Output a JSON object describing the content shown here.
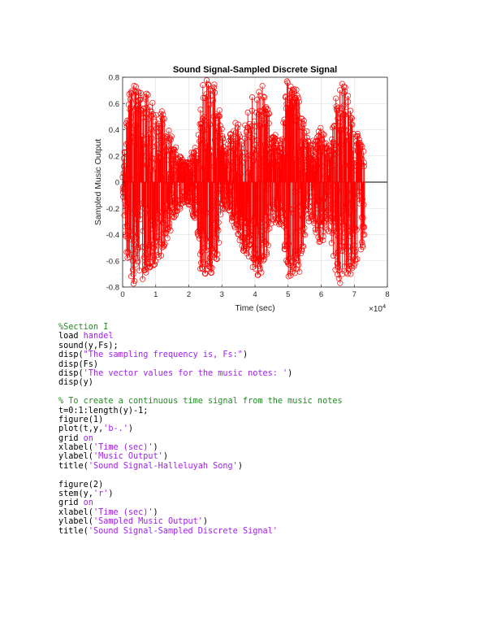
{
  "chart_data": {
    "type": "stem",
    "title": "Sound Signal-Sampled Discrete Signal",
    "xlabel": "Time (sec)",
    "ylabel": "Sampled Music Output",
    "xlim": [
      0,
      80000
    ],
    "ylim": [
      -0.8,
      0.8
    ],
    "x_ticks": [
      "0",
      "1",
      "2",
      "3",
      "4",
      "5",
      "6",
      "7",
      "8"
    ],
    "y_ticks": [
      "-0.8",
      "-0.6",
      "-0.4",
      "-0.2",
      "0",
      "0.2",
      "0.4",
      "0.6",
      "0.8"
    ],
    "x_exponent": "×10",
    "x_exponent_power": "4",
    "grid": true,
    "series": [
      {
        "color": "#FF0000",
        "marker": "circle",
        "num_samples": 73113,
        "envelope": {
          "x": [
            0,
            1500,
            3000,
            4500,
            6000,
            7500,
            9000,
            10500,
            12000,
            13500,
            15000,
            16500,
            18000,
            19500,
            21000,
            22500,
            24000,
            25500,
            27000,
            28500,
            30000,
            31500,
            33000,
            34500,
            36000,
            37500,
            39000,
            40500,
            42000,
            43500,
            45000,
            46500,
            48000,
            49500,
            51000,
            52500,
            54000,
            55500,
            57000,
            58500,
            60000,
            61500,
            63000,
            64500,
            66000,
            67500,
            69000,
            70500,
            72000,
            73113
          ],
          "max": [
            0.05,
            0.65,
            0.8,
            0.75,
            0.65,
            0.7,
            0.65,
            0.55,
            0.55,
            0.45,
            0.35,
            0.25,
            0.2,
            0.15,
            0.25,
            0.3,
            0.75,
            0.8,
            0.8,
            0.7,
            0.4,
            0.3,
            0.4,
            0.5,
            0.35,
            0.5,
            0.65,
            0.7,
            0.75,
            0.65,
            0.4,
            0.35,
            0.3,
            0.8,
            0.8,
            0.75,
            0.55,
            0.4,
            0.3,
            0.35,
            0.45,
            0.3,
            0.35,
            0.65,
            0.8,
            0.75,
            0.55,
            0.45,
            0.3,
            0.3
          ],
          "min": [
            -0.05,
            -0.7,
            -0.8,
            -0.8,
            -0.75,
            -0.7,
            -0.65,
            -0.6,
            -0.55,
            -0.45,
            -0.35,
            -0.25,
            -0.2,
            -0.15,
            -0.25,
            -0.4,
            -0.8,
            -0.8,
            -0.7,
            -0.6,
            -0.3,
            -0.2,
            -0.3,
            -0.4,
            -0.5,
            -0.6,
            -0.7,
            -0.75,
            -0.7,
            -0.6,
            -0.35,
            -0.3,
            -0.35,
            -0.7,
            -0.8,
            -0.75,
            -0.65,
            -0.35,
            -0.25,
            -0.4,
            -0.5,
            -0.35,
            -0.45,
            -0.75,
            -0.8,
            -0.75,
            -0.7,
            -0.65,
            -0.65,
            -0.4
          ]
        }
      }
    ]
  },
  "code": {
    "lines": [
      [
        {
          "t": "%Section I",
          "k": "comment"
        }
      ],
      [
        {
          "t": "load ",
          "k": "plain"
        },
        {
          "t": "handel",
          "k": "string"
        }
      ],
      [
        {
          "t": "sound(y,Fs);",
          "k": "plain"
        }
      ],
      [
        {
          "t": "disp(",
          "k": "plain"
        },
        {
          "t": "\"The sampling frequency is, Fs:\"",
          "k": "string"
        },
        {
          "t": ")",
          "k": "plain"
        }
      ],
      [
        {
          "t": "disp(Fs)",
          "k": "plain"
        }
      ],
      [
        {
          "t": "disp(",
          "k": "plain"
        },
        {
          "t": "'The vector values for the music notes: '",
          "k": "string"
        },
        {
          "t": ")",
          "k": "plain"
        }
      ],
      [
        {
          "t": "disp(y)",
          "k": "plain"
        }
      ],
      [],
      [
        {
          "t": "% To create a continuous time signal from the music notes",
          "k": "comment"
        }
      ],
      [
        {
          "t": "t=0:1:length(y)-1;",
          "k": "plain"
        }
      ],
      [
        {
          "t": "figure(1)",
          "k": "plain"
        }
      ],
      [
        {
          "t": "plot(t,y,",
          "k": "plain"
        },
        {
          "t": "'b-.'",
          "k": "string"
        },
        {
          "t": ")",
          "k": "plain"
        }
      ],
      [
        {
          "t": "grid ",
          "k": "plain"
        },
        {
          "t": "on",
          "k": "keyword"
        }
      ],
      [
        {
          "t": "xlabel(",
          "k": "plain"
        },
        {
          "t": "'Time (sec)'",
          "k": "string"
        },
        {
          "t": ")",
          "k": "plain"
        }
      ],
      [
        {
          "t": "ylabel(",
          "k": "plain"
        },
        {
          "t": "'Music Output'",
          "k": "string"
        },
        {
          "t": ")",
          "k": "plain"
        }
      ],
      [
        {
          "t": "title(",
          "k": "plain"
        },
        {
          "t": "'Sound Signal-Halleluyah Song'",
          "k": "string"
        },
        {
          "t": ")",
          "k": "plain"
        }
      ],
      [],
      [
        {
          "t": "figure(2)",
          "k": "plain"
        }
      ],
      [
        {
          "t": "stem(y,",
          "k": "plain"
        },
        {
          "t": "'r'",
          "k": "string"
        },
        {
          "t": ")",
          "k": "plain"
        }
      ],
      [
        {
          "t": "grid ",
          "k": "plain"
        },
        {
          "t": "on",
          "k": "keyword"
        }
      ],
      [
        {
          "t": "xlabel(",
          "k": "plain"
        },
        {
          "t": "'Time (sec)'",
          "k": "string"
        },
        {
          "t": ")",
          "k": "plain"
        }
      ],
      [
        {
          "t": "ylabel(",
          "k": "plain"
        },
        {
          "t": "'Sampled Music Output'",
          "k": "string"
        },
        {
          "t": ")",
          "k": "plain"
        }
      ],
      [
        {
          "t": "title(",
          "k": "plain"
        },
        {
          "t": "'Sound Signal-Sampled Discrete Signal'",
          "k": "string"
        }
      ]
    ]
  }
}
